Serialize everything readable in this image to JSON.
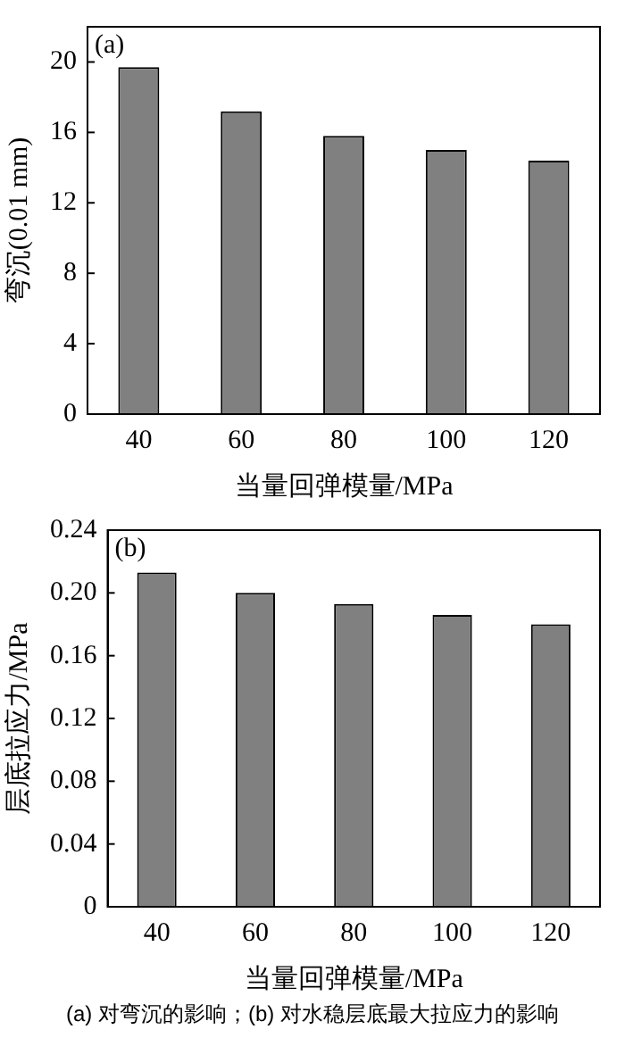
{
  "chart_data": [
    {
      "type": "bar",
      "categories": [
        "40",
        "60",
        "80",
        "100",
        "120"
      ],
      "values": [
        19.7,
        17.2,
        15.8,
        15.0,
        14.4
      ],
      "color": "#808080",
      "xlabel": "当量回弹模量/MPa",
      "ylabel": "弯沉(0.01 mm)",
      "ylim": [
        0,
        22
      ],
      "yticks": [
        0,
        4,
        8,
        12,
        16,
        20
      ],
      "grid": false,
      "legend": false,
      "annotations": [
        "(a)"
      ]
    },
    {
      "type": "bar",
      "categories": [
        "40",
        "60",
        "80",
        "100",
        "120"
      ],
      "values": [
        0.213,
        0.2,
        0.193,
        0.186,
        0.18
      ],
      "color": "#808080",
      "xlabel": "当量回弹模量/MPa",
      "ylabel": "层底拉应力/MPa",
      "ylim": [
        0,
        0.24
      ],
      "yticks": [
        {
          "value": 0,
          "label": "0"
        },
        {
          "value": 0.04,
          "label": "0.04"
        },
        {
          "value": 0.08,
          "label": "0.08"
        },
        {
          "value": 0.12,
          "label": "0.12"
        },
        {
          "value": 0.16,
          "label": "0.16"
        },
        {
          "value": 0.2,
          "label": "0.20"
        },
        {
          "value": 0.24,
          "label": "0.24"
        }
      ],
      "grid": false,
      "legend": false,
      "annotations": [
        "(b)",
        "(a) 对弯沉的影响；(b) 对水稳层底最大拉应力的影响"
      ]
    }
  ]
}
